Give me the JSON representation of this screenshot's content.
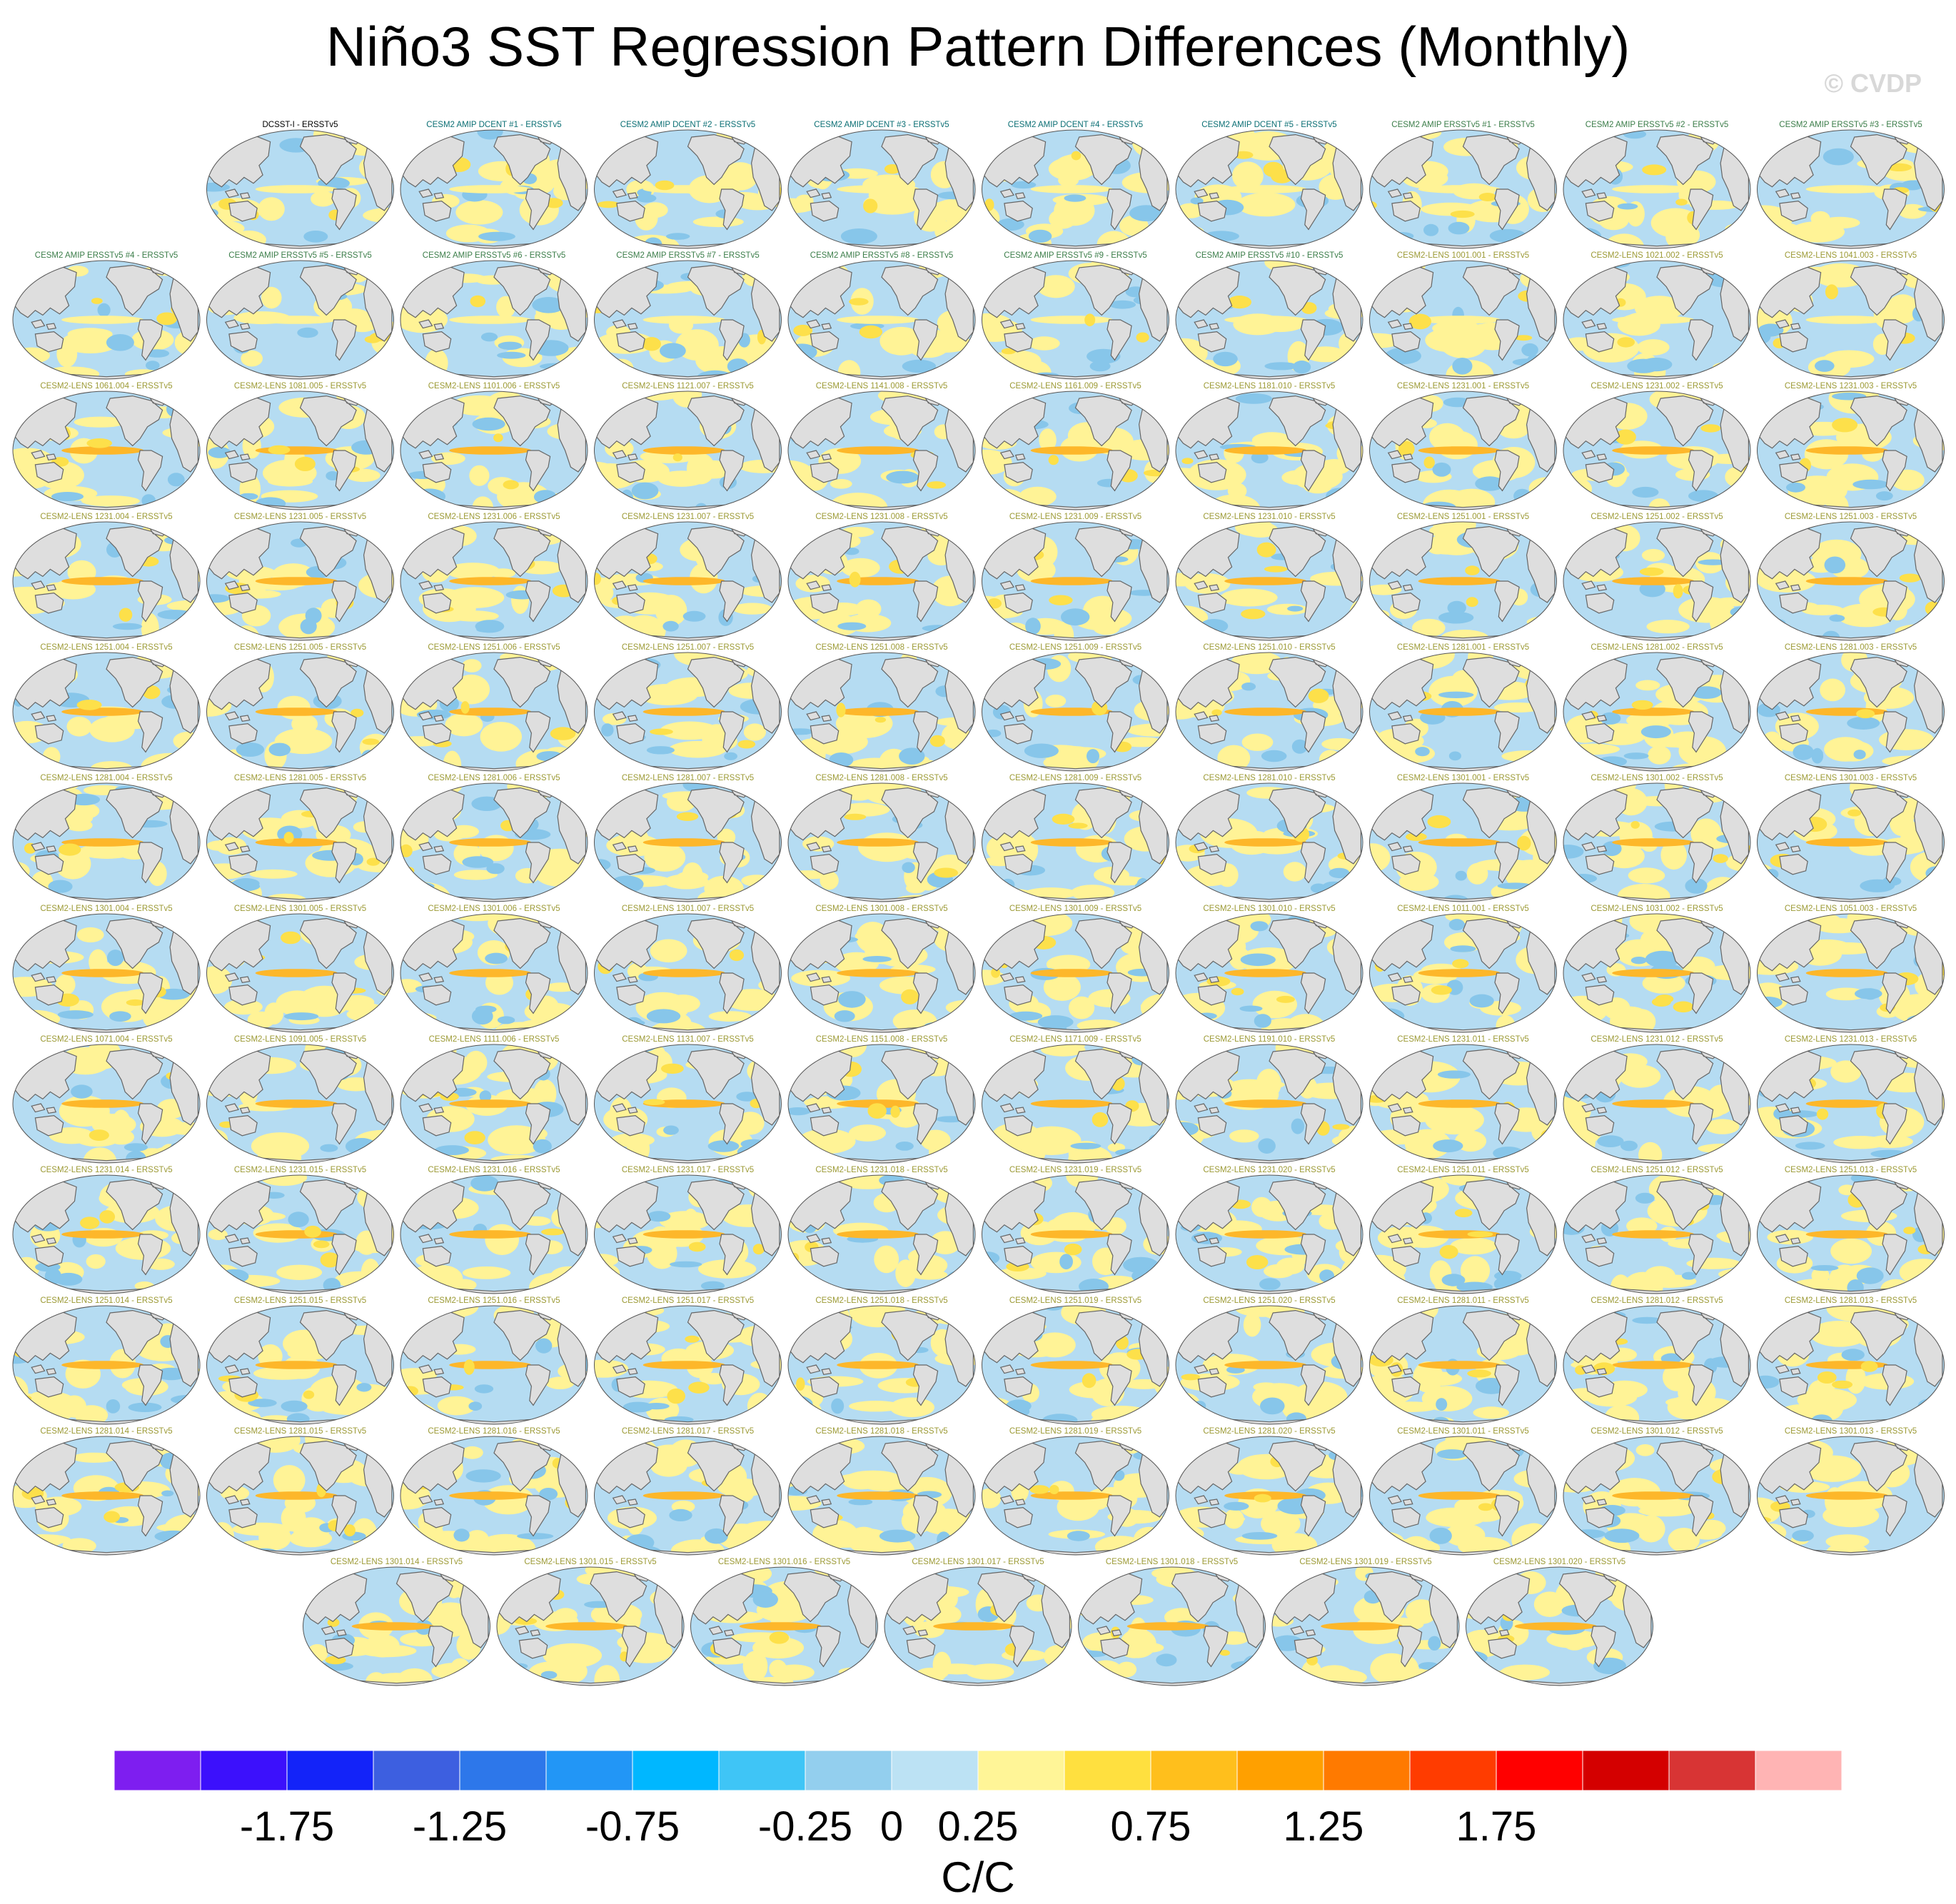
{
  "title": "Niño3 SST Regression Pattern Differences (Monthly)",
  "watermark": "© CVDP",
  "colors": {
    "land": "#dedede",
    "coast": "#666666",
    "ocean_neg": "#b5dcf2",
    "ocean_neg2": "#87c6ea",
    "ocean_pos": "#fff396",
    "ocean_pos2": "#fde04a",
    "ocean_pos3": "#fdb72a"
  },
  "chart_data": {
    "type": "map-panel-grid",
    "title": "Niño3 SST Regression Pattern Differences (Monthly)",
    "rows": [
      [
        "DCSST-I - ERSSTv5",
        "CESM2 AMIP DCENT #1 - ERSSTv5",
        "CESM2 AMIP DCENT #2 - ERSSTv5",
        "CESM2 AMIP DCENT #3 - ERSSTv5",
        "CESM2 AMIP DCENT #4 - ERSSTv5",
        "CESM2 AMIP DCENT #5 - ERSSTv5",
        "CESM2 AMIP ERSSTv5 #1 - ERSSTv5",
        "CESM2 AMIP ERSSTv5 #2 - ERSSTv5",
        "CESM2 AMIP ERSSTv5 #3 - ERSSTv5"
      ],
      [
        "CESM2 AMIP ERSSTv5 #4 - ERSSTv5",
        "CESM2 AMIP ERSSTv5 #5 - ERSSTv5",
        "CESM2 AMIP ERSSTv5 #6 - ERSSTv5",
        "CESM2 AMIP ERSSTv5 #7 - ERSSTv5",
        "CESM2 AMIP ERSSTv5 #8 - ERSSTv5",
        "CESM2 AMIP ERSSTv5 #9 - ERSSTv5",
        "CESM2 AMIP ERSSTv5 #10 - ERSSTv5",
        "CESM2-LENS 1001.001 - ERSSTv5",
        "CESM2-LENS 1021.002 - ERSSTv5",
        "CESM2-LENS 1041.003 - ERSSTv5"
      ],
      [
        "CESM2-LENS 1061.004 - ERSSTv5",
        "CESM2-LENS 1081.005 - ERSSTv5",
        "CESM2-LENS 1101.006 - ERSSTv5",
        "CESM2-LENS 1121.007 - ERSSTv5",
        "CESM2-LENS 1141.008 - ERSSTv5",
        "CESM2-LENS 1161.009 - ERSSTv5",
        "CESM2-LENS 1181.010 - ERSSTv5",
        "CESM2-LENS 1231.001 - ERSSTv5",
        "CESM2-LENS 1231.002 - ERSSTv5",
        "CESM2-LENS 1231.003 - ERSSTv5"
      ],
      [
        "CESM2-LENS 1231.004 - ERSSTv5",
        "CESM2-LENS 1231.005 - ERSSTv5",
        "CESM2-LENS 1231.006 - ERSSTv5",
        "CESM2-LENS 1231.007 - ERSSTv5",
        "CESM2-LENS 1231.008 - ERSSTv5",
        "CESM2-LENS 1231.009 - ERSSTv5",
        "CESM2-LENS 1231.010 - ERSSTv5",
        "CESM2-LENS 1251.001 - ERSSTv5",
        "CESM2-LENS 1251.002 - ERSSTv5",
        "CESM2-LENS 1251.003 - ERSSTv5"
      ],
      [
        "CESM2-LENS 1251.004 - ERSSTv5",
        "CESM2-LENS 1251.005 - ERSSTv5",
        "CESM2-LENS 1251.006 - ERSSTv5",
        "CESM2-LENS 1251.007 - ERSSTv5",
        "CESM2-LENS 1251.008 - ERSSTv5",
        "CESM2-LENS 1251.009 - ERSSTv5",
        "CESM2-LENS 1251.010 - ERSSTv5",
        "CESM2-LENS 1281.001 - ERSSTv5",
        "CESM2-LENS 1281.002 - ERSSTv5",
        "CESM2-LENS 1281.003 - ERSSTv5"
      ],
      [
        "CESM2-LENS 1281.004 - ERSSTv5",
        "CESM2-LENS 1281.005 - ERSSTv5",
        "CESM2-LENS 1281.006 - ERSSTv5",
        "CESM2-LENS 1281.007 - ERSSTv5",
        "CESM2-LENS 1281.008 - ERSSTv5",
        "CESM2-LENS 1281.009 - ERSSTv5",
        "CESM2-LENS 1281.010 - ERSSTv5",
        "CESM2-LENS 1301.001 - ERSSTv5",
        "CESM2-LENS 1301.002 - ERSSTv5",
        "CESM2-LENS 1301.003 - ERSSTv5"
      ],
      [
        "CESM2-LENS 1301.004 - ERSSTv5",
        "CESM2-LENS 1301.005 - ERSSTv5",
        "CESM2-LENS 1301.006 - ERSSTv5",
        "CESM2-LENS 1301.007 - ERSSTv5",
        "CESM2-LENS 1301.008 - ERSSTv5",
        "CESM2-LENS 1301.009 - ERSSTv5",
        "CESM2-LENS 1301.010 - ERSSTv5",
        "CESM2-LENS 1011.001 - ERSSTv5",
        "CESM2-LENS 1031.002 - ERSSTv5",
        "CESM2-LENS 1051.003 - ERSSTv5"
      ],
      [
        "CESM2-LENS 1071.004 - ERSSTv5",
        "CESM2-LENS 1091.005 - ERSSTv5",
        "CESM2-LENS 1111.006 - ERSSTv5",
        "CESM2-LENS 1131.007 - ERSSTv5",
        "CESM2-LENS 1151.008 - ERSSTv5",
        "CESM2-LENS 1171.009 - ERSSTv5",
        "CESM2-LENS 1191.010 - ERSSTv5",
        "CESM2-LENS 1231.011 - ERSSTv5",
        "CESM2-LENS 1231.012 - ERSSTv5",
        "CESM2-LENS 1231.013 - ERSSTv5"
      ],
      [
        "CESM2-LENS 1231.014 - ERSSTv5",
        "CESM2-LENS 1231.015 - ERSSTv5",
        "CESM2-LENS 1231.016 - ERSSTv5",
        "CESM2-LENS 1231.017 - ERSSTv5",
        "CESM2-LENS 1231.018 - ERSSTv5",
        "CESM2-LENS 1231.019 - ERSSTv5",
        "CESM2-LENS 1231.020 - ERSSTv5",
        "CESM2-LENS 1251.011 - ERSSTv5",
        "CESM2-LENS 1251.012 - ERSSTv5",
        "CESM2-LENS 1251.013 - ERSSTv5"
      ],
      [
        "CESM2-LENS 1251.014 - ERSSTv5",
        "CESM2-LENS 1251.015 - ERSSTv5",
        "CESM2-LENS 1251.016 - ERSSTv5",
        "CESM2-LENS 1251.017 - ERSSTv5",
        "CESM2-LENS 1251.018 - ERSSTv5",
        "CESM2-LENS 1251.019 - ERSSTv5",
        "CESM2-LENS 1251.020 - ERSSTv5",
        "CESM2-LENS 1281.011 - ERSSTv5",
        "CESM2-LENS 1281.012 - ERSSTv5",
        "CESM2-LENS 1281.013 - ERSSTv5"
      ],
      [
        "CESM2-LENS 1281.014 - ERSSTv5",
        "CESM2-LENS 1281.015 - ERSSTv5",
        "CESM2-LENS 1281.016 - ERSSTv5",
        "CESM2-LENS 1281.017 - ERSSTv5",
        "CESM2-LENS 1281.018 - ERSSTv5",
        "CESM2-LENS 1281.019 - ERSSTv5",
        "CESM2-LENS 1281.020 - ERSSTv5",
        "CESM2-LENS 1301.011 - ERSSTv5",
        "CESM2-LENS 1301.012 - ERSSTv5",
        "CESM2-LENS 1301.013 - ERSSTv5"
      ],
      [
        "CESM2-LENS 1301.014 - ERSSTv5",
        "CESM2-LENS 1301.015 - ERSSTv5",
        "CESM2-LENS 1301.016 - ERSSTv5",
        "CESM2-LENS 1301.017 - ERSSTv5",
        "CESM2-LENS 1301.018 - ERSSTv5",
        "CESM2-LENS 1301.019 - ERSSTv5",
        "CESM2-LENS 1301.020 - ERSSTv5"
      ]
    ],
    "colorbar": {
      "colors": [
        "#7e1ef0",
        "#3c10fc",
        "#1323f9",
        "#3d5fe0",
        "#2d77ea",
        "#2296f6",
        "#00b7ff",
        "#3fc5f6",
        "#93cfee",
        "#bce2f4",
        "#fff597",
        "#ffe03f",
        "#ffbf1c",
        "#ffa000",
        "#ff7a00",
        "#ff3c00",
        "#ff0000",
        "#d40000",
        "#d83434",
        "#ffb4b4"
      ],
      "levels": [
        -2,
        -1.75,
        -1.5,
        -1.25,
        -1,
        -0.75,
        -0.5,
        -0.25,
        0,
        0.25,
        0.5,
        0.75,
        1,
        1.25,
        1.5,
        1.75,
        2
      ],
      "tick_labels": [
        "-1.75",
        "-1.25",
        "-0.75",
        "-0.25",
        "0",
        "0.25",
        "0.75",
        "1.25",
        "1.75"
      ],
      "tick_values": [
        -1.75,
        -1.25,
        -0.75,
        -0.25,
        0,
        0.25,
        0.75,
        1.25,
        1.75
      ],
      "units": "C/C"
    }
  }
}
